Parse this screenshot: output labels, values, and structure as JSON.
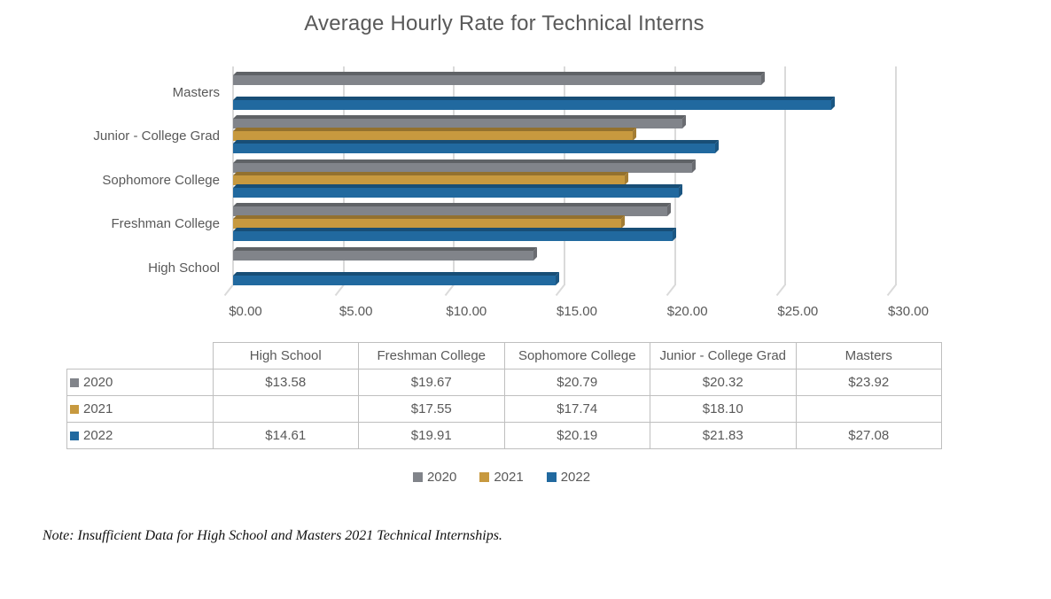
{
  "title": "Average Hourly Rate for Technical Interns",
  "chart_data": {
    "type": "bar",
    "orientation": "horizontal",
    "style": "3d",
    "title": "Average Hourly Rate for Technical Interns",
    "xlabel": "",
    "ylabel": "",
    "categories": [
      "High School",
      "Freshman College",
      "Sophomore College",
      "Junior - College Grad",
      "Masters"
    ],
    "display_order_top_to_bottom": [
      "Masters",
      "Junior - College Grad",
      "Sophomore College",
      "Freshman College",
      "High School"
    ],
    "series": [
      {
        "name": "2020",
        "color": "#81848A",
        "values": [
          13.58,
          19.67,
          20.79,
          20.32,
          23.92
        ]
      },
      {
        "name": "2021",
        "color": "#C7993F",
        "values": [
          null,
          17.55,
          17.74,
          18.1,
          null
        ]
      },
      {
        "name": "2022",
        "color": "#21699F",
        "values": [
          14.61,
          19.91,
          20.19,
          21.83,
          27.08
        ]
      }
    ],
    "xlim": [
      0,
      30
    ],
    "x_ticks": [
      "$0.00",
      "$5.00",
      "$10.00",
      "$15.00",
      "$20.00",
      "$25.00",
      "$30.00"
    ],
    "grid": "vertical",
    "legend_position": "bottom"
  },
  "table": {
    "columns": [
      "High School",
      "Freshman College",
      "Sophomore College",
      "Junior - College Grad",
      "Masters"
    ],
    "rows": [
      {
        "year": "2020",
        "key_color": "#81848A",
        "values": [
          "$13.58",
          "$19.67",
          "$20.79",
          "$20.32",
          "$23.92"
        ]
      },
      {
        "year": "2021",
        "key_color": "#C7993F",
        "values": [
          "",
          "$17.55",
          "$17.74",
          "$18.10",
          ""
        ]
      },
      {
        "year": "2022",
        "key_color": "#21699F",
        "values": [
          "$14.61",
          "$19.91",
          "$20.19",
          "$21.83",
          "$27.08"
        ]
      }
    ]
  },
  "legend": {
    "items": [
      {
        "label": "2020",
        "color": "#81848A"
      },
      {
        "label": "2021",
        "color": "#C7993F"
      },
      {
        "label": "2022",
        "color": "#21699F"
      }
    ]
  },
  "note": "Note: Insufficient Data for High School and Masters 2021 Technical Internships."
}
